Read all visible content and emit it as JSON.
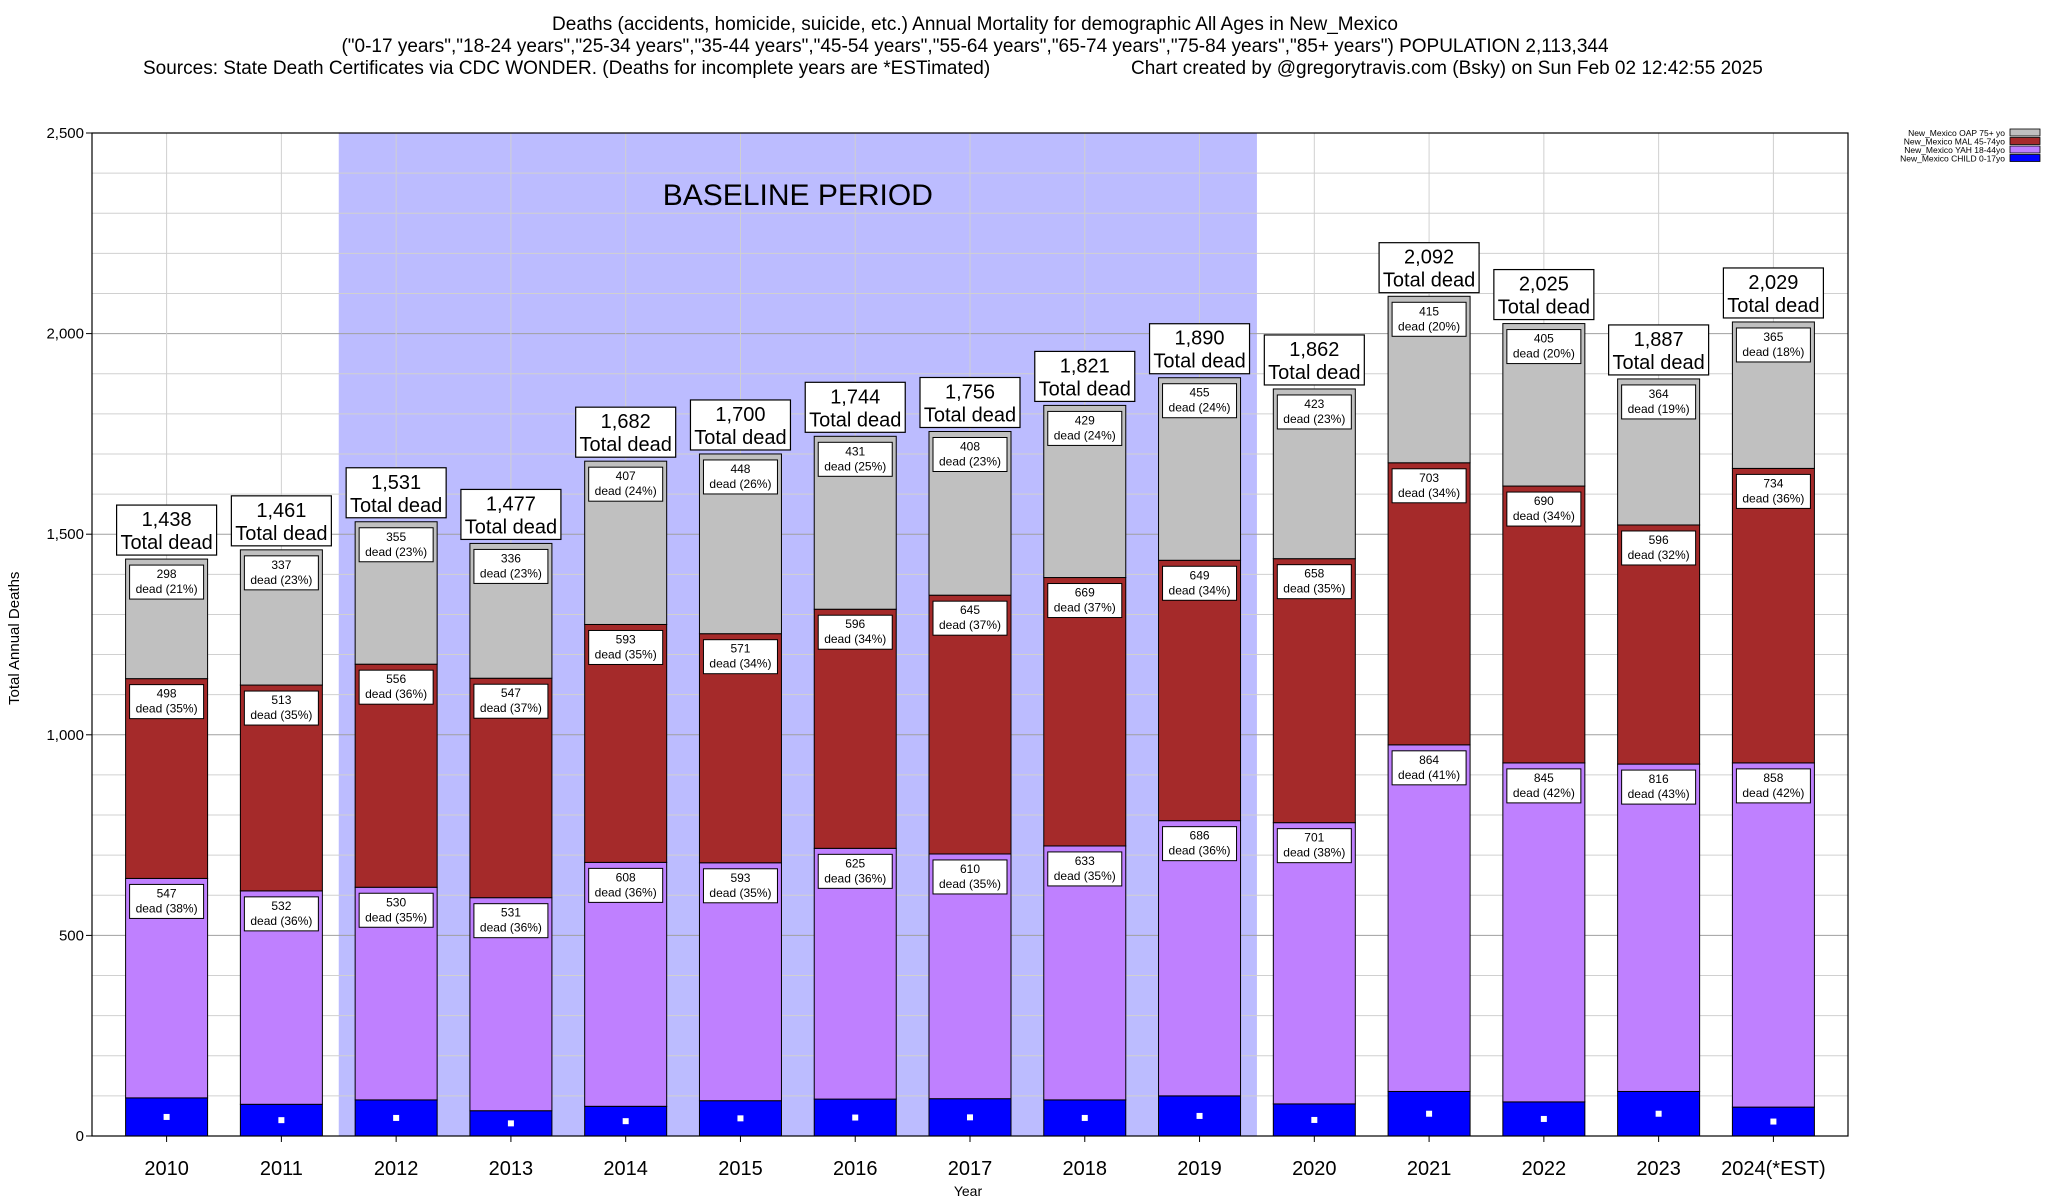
{
  "title": {
    "line1": "Deaths (accidents, homicide, suicide, etc.) Annual Mortality for demographic All Ages in New_Mexico",
    "line2": "(\"0-17 years\",\"18-24 years\",\"25-34 years\",\"35-44 years\",\"45-54 years\",\"55-64 years\",\"65-74 years\",\"75-84 years\",\"85+ years\") POPULATION 2,113,344",
    "sources": "Sources: State Death Certificates via CDC WONDER. (Deaths for incomplete years are *ESTimated)",
    "credit": "Chart created by @gregorytravis.com (Bsky) on Sun Feb 02 12:42:55 2025"
  },
  "chart_data": {
    "type": "bar",
    "stacked": true,
    "xlabel": "Year",
    "ylabel": "Total Annual Deaths",
    "ylim": [
      0,
      2500
    ],
    "yticks": [
      0,
      500,
      1000,
      1500,
      2000,
      2500
    ],
    "ytick_labels": [
      "0",
      "500",
      "1,000",
      "1,500",
      "2,000",
      "2,500"
    ],
    "grid": true,
    "legend_position": "top-right",
    "baseline_label": "BASELINE PERIOD",
    "baseline_range": [
      "2012",
      "2019"
    ],
    "total_label_suffix": "Total dead",
    "segment_label_word": "dead",
    "categories": [
      "2010",
      "2011",
      "2012",
      "2013",
      "2014",
      "2015",
      "2016",
      "2017",
      "2018",
      "2019",
      "2020",
      "2021",
      "2022",
      "2023",
      "2024(*EST)"
    ],
    "totals": [
      1438,
      1461,
      1531,
      1477,
      1682,
      1700,
      1744,
      1756,
      1821,
      1890,
      1862,
      2092,
      2025,
      1887,
      2029
    ],
    "series": [
      {
        "name": "New_Mexico CHILD 0-17yo",
        "color": "#0000ff",
        "values": [
          95,
          79,
          90,
          63,
          74,
          88,
          92,
          93,
          90,
          100,
          80,
          111,
          85,
          111,
          72
        ]
      },
      {
        "name": "New_Mexico YAH 18-44yo",
        "color": "#bf80ff",
        "values": [
          547,
          532,
          530,
          531,
          608,
          593,
          625,
          610,
          633,
          686,
          701,
          864,
          845,
          816,
          858
        ],
        "pct": [
          38,
          36,
          35,
          36,
          36,
          35,
          36,
          35,
          35,
          36,
          38,
          41,
          42,
          43,
          42
        ]
      },
      {
        "name": "New_Mexico MAL 45-74yo",
        "color": "#a52a2a",
        "values": [
          498,
          513,
          556,
          547,
          593,
          571,
          596,
          645,
          669,
          649,
          658,
          703,
          690,
          596,
          734
        ],
        "pct": [
          35,
          35,
          36,
          37,
          35,
          34,
          34,
          37,
          37,
          34,
          35,
          34,
          34,
          32,
          36
        ]
      },
      {
        "name": "New_Mexico OAP 75+ yo",
        "color": "#c0c0c0",
        "values": [
          298,
          337,
          355,
          336,
          407,
          448,
          431,
          408,
          429,
          455,
          423,
          415,
          405,
          364,
          365
        ],
        "pct": [
          21,
          23,
          23,
          23,
          24,
          26,
          25,
          23,
          24,
          24,
          23,
          20,
          20,
          19,
          18
        ]
      }
    ]
  }
}
